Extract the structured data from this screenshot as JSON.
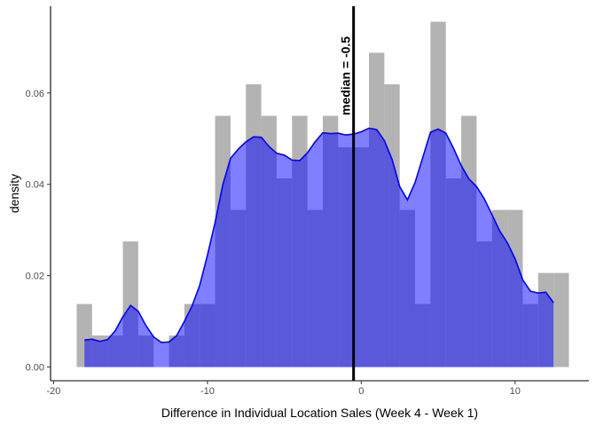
{
  "chart_data": {
    "type": "histogram",
    "title": "",
    "xlabel": "Difference in Individual Location Sales (Week 4 - Week 1)",
    "ylabel": "density",
    "xlim": [
      -20.2,
      14.8
    ],
    "ylim": [
      -0.003,
      0.079
    ],
    "x_ticks": [
      -20,
      -10,
      0,
      10
    ],
    "x_tick_labels": [
      "-20",
      "-10",
      "0",
      "10"
    ],
    "y_ticks": [
      0.0,
      0.02,
      0.04,
      0.06
    ],
    "y_tick_labels": [
      "0.00",
      "0.02",
      "0.04",
      "0.06"
    ],
    "bin_width": 1,
    "bin_lefts": [
      -18.5,
      -17.5,
      -16.5,
      -15.5,
      -14.5,
      -13.5,
      -12.5,
      -11.5,
      -10.5,
      -9.5,
      -8.5,
      -7.5,
      -6.5,
      -5.5,
      -4.5,
      -3.5,
      -2.5,
      -1.5,
      -0.5,
      0.5,
      1.5,
      2.5,
      3.5,
      4.5,
      5.5,
      6.5,
      7.5,
      8.5,
      9.5,
      10.5,
      11.5,
      12.5
    ],
    "histogram_density": [
      0.0138,
      0.0069,
      0.0069,
      0.0275,
      0.0069,
      0.0,
      0.0069,
      0.0138,
      0.0138,
      0.055,
      0.0344,
      0.0619,
      0.055,
      0.0413,
      0.055,
      0.0344,
      0.055,
      0.0481,
      0.0481,
      0.0688,
      0.0619,
      0.0344,
      0.0138,
      0.0756,
      0.0413,
      0.055,
      0.0275,
      0.0344,
      0.0344,
      0.0138,
      0.0206,
      0.0206
    ],
    "density_x": [
      -18.0,
      -17.5,
      -17.0,
      -16.5,
      -16.0,
      -15.5,
      -15.0,
      -14.5,
      -14.0,
      -13.5,
      -13.0,
      -12.5,
      -12.0,
      -11.5,
      -11.0,
      -10.5,
      -10.0,
      -9.5,
      -9.0,
      -8.5,
      -8.0,
      -7.5,
      -7.0,
      -6.5,
      -6.0,
      -5.5,
      -5.0,
      -4.5,
      -4.0,
      -3.5,
      -3.0,
      -2.5,
      -2.0,
      -1.5,
      -1.0,
      -0.5,
      0.0,
      0.5,
      1.0,
      1.5,
      2.0,
      2.5,
      3.0,
      3.5,
      4.0,
      4.5,
      5.0,
      5.5,
      6.0,
      6.5,
      7.0,
      7.5,
      8.0,
      8.5,
      9.0,
      9.5,
      10.0,
      10.5,
      11.0,
      11.5,
      12.0,
      12.5
    ],
    "density_y": [
      0.0059,
      0.0061,
      0.0056,
      0.006,
      0.0079,
      0.011,
      0.0135,
      0.0122,
      0.0091,
      0.0066,
      0.0054,
      0.0055,
      0.0069,
      0.01,
      0.0134,
      0.0179,
      0.0245,
      0.0317,
      0.0399,
      0.0457,
      0.0477,
      0.0493,
      0.0504,
      0.0503,
      0.0483,
      0.0468,
      0.0464,
      0.0453,
      0.0452,
      0.0469,
      0.0493,
      0.0513,
      0.0511,
      0.0512,
      0.0508,
      0.051,
      0.0515,
      0.0523,
      0.052,
      0.0496,
      0.0455,
      0.0395,
      0.0366,
      0.0404,
      0.0459,
      0.0514,
      0.0521,
      0.0512,
      0.0479,
      0.0441,
      0.0412,
      0.0395,
      0.0368,
      0.0334,
      0.0298,
      0.0272,
      0.0237,
      0.0191,
      0.0166,
      0.0162,
      0.0164,
      0.0141
    ],
    "median": -0.5,
    "median_label": "median =  -0.5",
    "colors": {
      "histogram_fill": "#b3b3b3",
      "density_fill": "#0000ff",
      "density_fill_opacity": 0.5,
      "density_line": "#0000ff",
      "median_line": "#000000"
    },
    "grid": false,
    "legend": "none"
  }
}
